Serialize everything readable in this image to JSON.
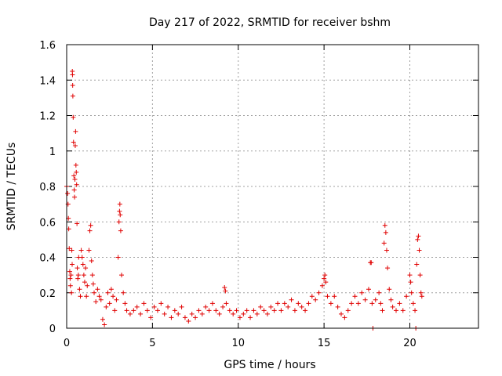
{
  "chart_data": {
    "type": "scatter",
    "title": "Day 217 of 2022, SRMTID for receiver bshm",
    "xlabel": "GPS time / hours",
    "ylabel": "SRMTID / TECUs",
    "xlim": [
      0,
      24
    ],
    "ylim": [
      0,
      1.6
    ],
    "x_ticks": [
      0,
      5,
      10,
      15,
      20
    ],
    "y_ticks": [
      0,
      0.2,
      0.4,
      0.6,
      0.8,
      1,
      1.2,
      1.4,
      1.6
    ],
    "x_tick_labels": [
      "0",
      "5",
      "10",
      "15",
      "20"
    ],
    "y_tick_labels": [
      "0",
      "0.2",
      "0.4",
      "0.6",
      "0.8",
      "1",
      "1.2",
      "1.4",
      "1.6"
    ],
    "grid": true,
    "marker": "+",
    "marker_color": "#e00000",
    "series": [
      {
        "name": "bshm",
        "points": [
          [
            0.0,
            0.8
          ],
          [
            0.05,
            0.76
          ],
          [
            0.08,
            0.7
          ],
          [
            0.1,
            0.62
          ],
          [
            0.12,
            0.56
          ],
          [
            0.15,
            0.45
          ],
          [
            0.18,
            0.32
          ],
          [
            0.2,
            0.28
          ],
          [
            0.22,
            0.24
          ],
          [
            0.25,
            0.3
          ],
          [
            0.28,
            0.2
          ],
          [
            0.3,
            0.44
          ],
          [
            0.32,
            0.36
          ],
          [
            0.33,
            1.45
          ],
          [
            0.34,
            1.43
          ],
          [
            0.35,
            1.37
          ],
          [
            0.36,
            1.31
          ],
          [
            0.38,
            1.19
          ],
          [
            0.4,
            1.05
          ],
          [
            0.42,
            0.86
          ],
          [
            0.44,
            0.78
          ],
          [
            0.46,
            0.74
          ],
          [
            0.48,
            0.84
          ],
          [
            0.5,
            1.03
          ],
          [
            0.52,
            1.11
          ],
          [
            0.54,
            0.92
          ],
          [
            0.56,
            0.88
          ],
          [
            0.58,
            0.81
          ],
          [
            0.6,
            0.59
          ],
          [
            0.62,
            0.34
          ],
          [
            0.65,
            0.28
          ],
          [
            0.68,
            0.3
          ],
          [
            0.7,
            0.4
          ],
          [
            0.75,
            0.22
          ],
          [
            0.8,
            0.18
          ],
          [
            0.85,
            0.44
          ],
          [
            0.9,
            0.4
          ],
          [
            0.95,
            0.36
          ],
          [
            1.0,
            0.3
          ],
          [
            1.05,
            0.26
          ],
          [
            1.1,
            0.34
          ],
          [
            1.15,
            0.18
          ],
          [
            1.2,
            0.24
          ],
          [
            1.3,
            0.44
          ],
          [
            1.35,
            0.55
          ],
          [
            1.4,
            0.58
          ],
          [
            1.45,
            0.38
          ],
          [
            1.5,
            0.3
          ],
          [
            1.55,
            0.25
          ],
          [
            1.6,
            0.2
          ],
          [
            1.7,
            0.15
          ],
          [
            1.8,
            0.22
          ],
          [
            1.9,
            0.18
          ],
          [
            2.0,
            0.16
          ],
          [
            2.1,
            0.05
          ],
          [
            2.2,
            0.02
          ],
          [
            2.3,
            0.12
          ],
          [
            2.4,
            0.2
          ],
          [
            2.5,
            0.14
          ],
          [
            2.6,
            0.22
          ],
          [
            2.7,
            0.18
          ],
          [
            2.8,
            0.1
          ],
          [
            2.9,
            0.16
          ],
          [
            3.0,
            0.4
          ],
          [
            3.05,
            0.6
          ],
          [
            3.08,
            0.66
          ],
          [
            3.1,
            0.7
          ],
          [
            3.12,
            0.64
          ],
          [
            3.15,
            0.55
          ],
          [
            3.2,
            0.3
          ],
          [
            3.3,
            0.2
          ],
          [
            3.4,
            0.14
          ],
          [
            3.5,
            0.1
          ],
          [
            3.7,
            0.08
          ],
          [
            3.9,
            0.1
          ],
          [
            4.1,
            0.12
          ],
          [
            4.3,
            0.08
          ],
          [
            4.5,
            0.14
          ],
          [
            4.7,
            0.1
          ],
          [
            4.9,
            0.06
          ],
          [
            5.1,
            0.12
          ],
          [
            5.3,
            0.1
          ],
          [
            5.5,
            0.14
          ],
          [
            5.7,
            0.08
          ],
          [
            5.9,
            0.12
          ],
          [
            6.1,
            0.06
          ],
          [
            6.3,
            0.1
          ],
          [
            6.5,
            0.08
          ],
          [
            6.7,
            0.12
          ],
          [
            6.9,
            0.06
          ],
          [
            7.1,
            0.04
          ],
          [
            7.3,
            0.08
          ],
          [
            7.5,
            0.06
          ],
          [
            7.7,
            0.1
          ],
          [
            7.9,
            0.08
          ],
          [
            8.1,
            0.12
          ],
          [
            8.3,
            0.1
          ],
          [
            8.5,
            0.14
          ],
          [
            8.7,
            0.1
          ],
          [
            8.9,
            0.08
          ],
          [
            9.1,
            0.12
          ],
          [
            9.2,
            0.23
          ],
          [
            9.25,
            0.21
          ],
          [
            9.3,
            0.14
          ],
          [
            9.5,
            0.1
          ],
          [
            9.7,
            0.08
          ],
          [
            9.9,
            0.1
          ],
          [
            10.1,
            0.06
          ],
          [
            10.3,
            0.08
          ],
          [
            10.5,
            0.1
          ],
          [
            10.7,
            0.06
          ],
          [
            10.9,
            0.1
          ],
          [
            11.1,
            0.08
          ],
          [
            11.3,
            0.12
          ],
          [
            11.5,
            0.1
          ],
          [
            11.7,
            0.08
          ],
          [
            11.9,
            0.12
          ],
          [
            12.1,
            0.1
          ],
          [
            12.3,
            0.14
          ],
          [
            12.5,
            0.1
          ],
          [
            12.7,
            0.14
          ],
          [
            12.9,
            0.12
          ],
          [
            13.1,
            0.16
          ],
          [
            13.3,
            0.1
          ],
          [
            13.5,
            0.14
          ],
          [
            13.7,
            0.12
          ],
          [
            13.9,
            0.1
          ],
          [
            14.1,
            0.14
          ],
          [
            14.3,
            0.18
          ],
          [
            14.5,
            0.16
          ],
          [
            14.7,
            0.2
          ],
          [
            14.9,
            0.24
          ],
          [
            15.0,
            0.28
          ],
          [
            15.05,
            0.3
          ],
          [
            15.1,
            0.26
          ],
          [
            15.2,
            0.18
          ],
          [
            15.4,
            0.14
          ],
          [
            15.6,
            0.18
          ],
          [
            15.8,
            0.12
          ],
          [
            16.0,
            0.08
          ],
          [
            16.2,
            0.06
          ],
          [
            16.4,
            0.1
          ],
          [
            16.6,
            0.14
          ],
          [
            16.8,
            0.18
          ],
          [
            17.0,
            0.14
          ],
          [
            17.2,
            0.2
          ],
          [
            17.4,
            0.16
          ],
          [
            17.6,
            0.22
          ],
          [
            17.7,
            0.37
          ],
          [
            17.75,
            0.37
          ],
          [
            17.8,
            0.14
          ],
          [
            17.85,
            0.0
          ],
          [
            18.0,
            0.16
          ],
          [
            18.2,
            0.2
          ],
          [
            18.3,
            0.14
          ],
          [
            18.4,
            0.1
          ],
          [
            18.5,
            0.48
          ],
          [
            18.55,
            0.58
          ],
          [
            18.6,
            0.54
          ],
          [
            18.65,
            0.44
          ],
          [
            18.7,
            0.34
          ],
          [
            18.8,
            0.22
          ],
          [
            18.9,
            0.16
          ],
          [
            19.0,
            0.12
          ],
          [
            19.2,
            0.1
          ],
          [
            19.4,
            0.14
          ],
          [
            19.6,
            0.1
          ],
          [
            19.8,
            0.18
          ],
          [
            20.0,
            0.3
          ],
          [
            20.05,
            0.26
          ],
          [
            20.1,
            0.2
          ],
          [
            20.2,
            0.14
          ],
          [
            20.3,
            0.1
          ],
          [
            20.35,
            0.0
          ],
          [
            20.4,
            0.36
          ],
          [
            20.45,
            0.5
          ],
          [
            20.5,
            0.52
          ],
          [
            20.55,
            0.44
          ],
          [
            20.6,
            0.3
          ],
          [
            20.65,
            0.2
          ],
          [
            20.7,
            0.18
          ]
        ]
      }
    ]
  }
}
